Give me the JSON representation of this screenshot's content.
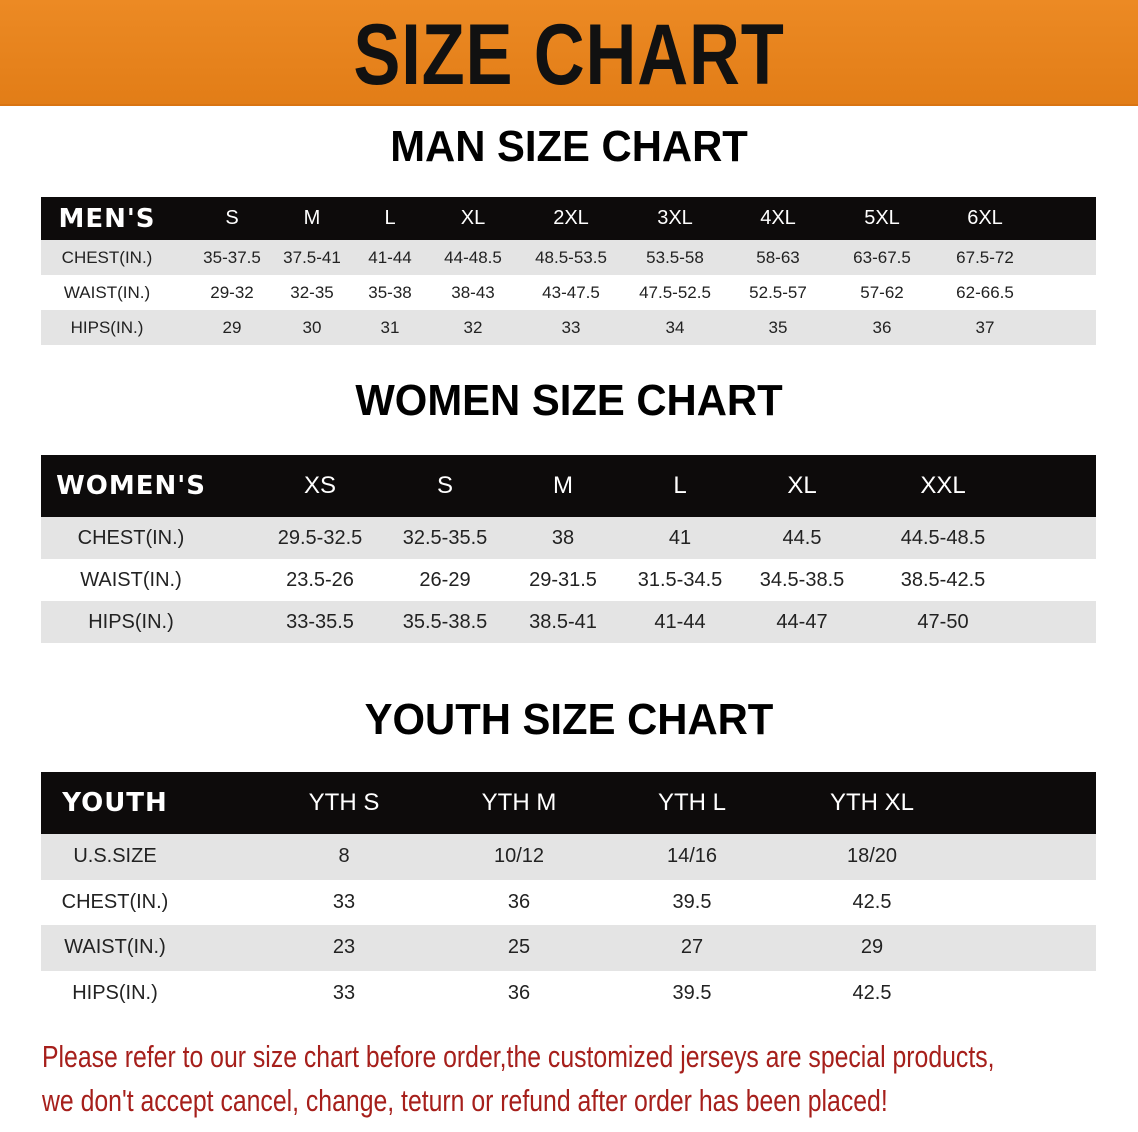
{
  "banner_title": "SIZE CHART",
  "colors": {
    "banner": "#e8821e",
    "header_row": "#0d0b0b",
    "stripe": "#e4e4e4",
    "note_text": "#a61f1b"
  },
  "men": {
    "title": "MAN SIZE CHART",
    "headers": [
      "MEN'S",
      "S",
      "M",
      "L",
      "XL",
      "2XL",
      "3XL",
      "4XL",
      "5XL",
      "6XL"
    ],
    "rows": [
      [
        "CHEST(IN.)",
        "35-37.5",
        "37.5-41",
        "41-44",
        "44-48.5",
        "48.5-53.5",
        "53.5-58",
        "58-63",
        "63-67.5",
        "67.5-72"
      ],
      [
        "WAIST(IN.)",
        "29-32",
        "32-35",
        "35-38",
        "38-43",
        "43-47.5",
        "47.5-52.5",
        "52.5-57",
        "57-62",
        "62-66.5"
      ],
      [
        "HIPS(IN.)",
        "29",
        "30",
        "31",
        "32",
        "33",
        "34",
        "35",
        "36",
        "37"
      ]
    ]
  },
  "women": {
    "title": "WOMEN SIZE CHART",
    "headers": [
      "WOMEN'S",
      "XS",
      "S",
      "M",
      "L",
      "XL",
      "XXL"
    ],
    "rows": [
      [
        "CHEST(IN.)",
        "29.5-32.5",
        "32.5-35.5",
        "38",
        "41",
        "44.5",
        "44.5-48.5"
      ],
      [
        "WAIST(IN.)",
        "23.5-26",
        "26-29",
        "29-31.5",
        "31.5-34.5",
        "34.5-38.5",
        "38.5-42.5"
      ],
      [
        "HIPS(IN.)",
        "33-35.5",
        "35.5-38.5",
        "38.5-41",
        "41-44",
        "44-47",
        "47-50"
      ]
    ]
  },
  "youth": {
    "title": "YOUTH SIZE CHART",
    "headers": [
      "YOUTH",
      "YTH S",
      "YTH M",
      "YTH L",
      "YTH XL"
    ],
    "rows": [
      [
        "U.S.SIZE",
        "8",
        "10/12",
        "14/16",
        "18/20"
      ],
      [
        "CHEST(IN.)",
        "33",
        "36",
        "39.5",
        "42.5"
      ],
      [
        "WAIST(IN.)",
        "23",
        "25",
        "27",
        "29"
      ],
      [
        "HIPS(IN.)",
        "33",
        "36",
        "39.5",
        "42.5"
      ]
    ]
  },
  "notice": [
    "Please refer to our size chart before order,the customized jerseys are special products,",
    "we don't accept cancel, change, teturn or refund after order has been placed!"
  ]
}
